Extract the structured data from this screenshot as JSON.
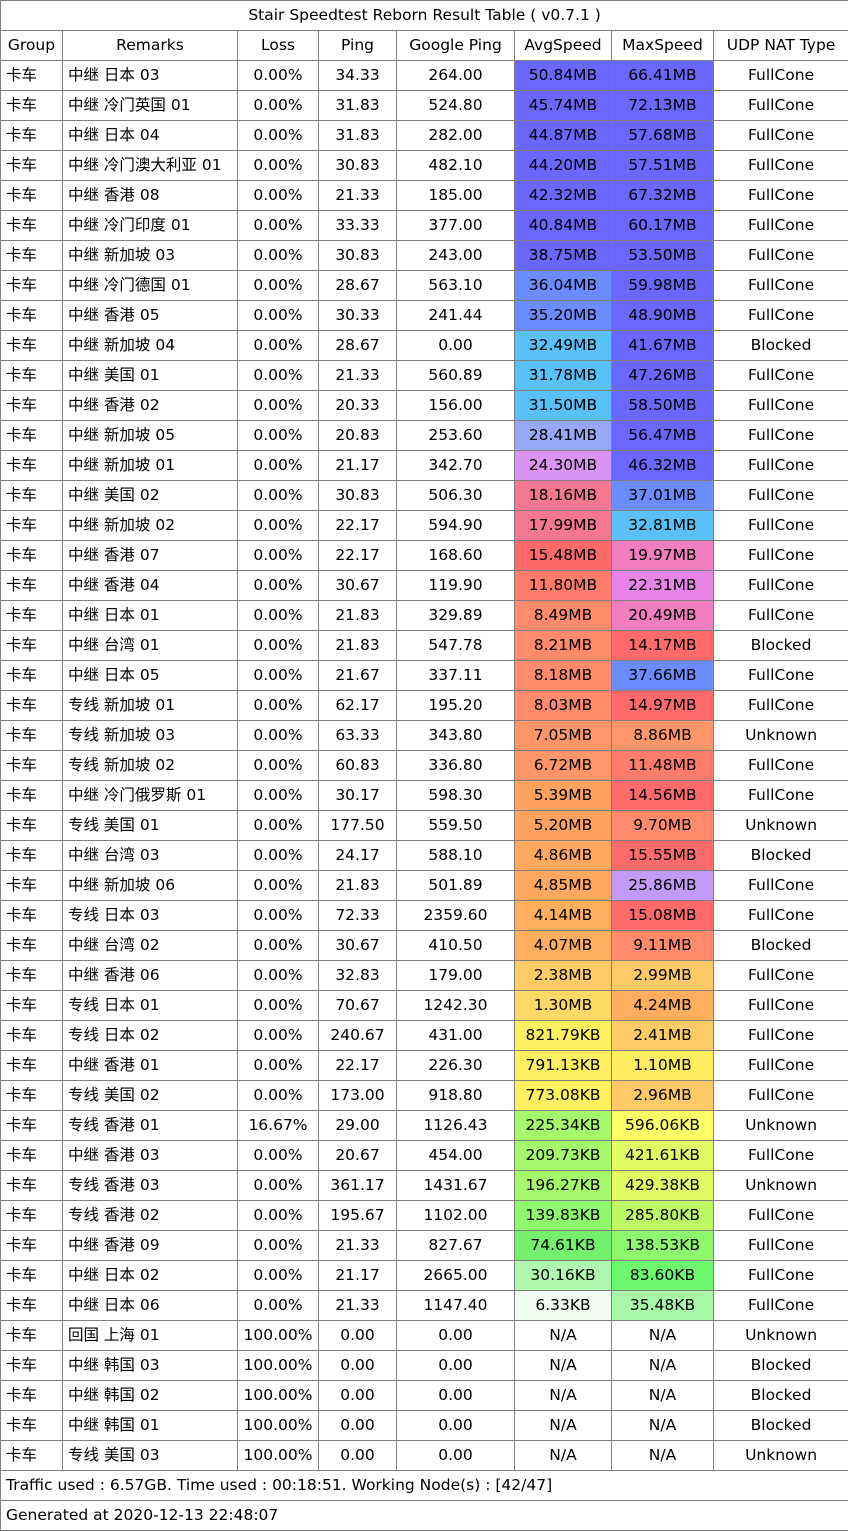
{
  "title": "Stair Speedtest Reborn Result Table ( v0.7.1 )",
  "headers": [
    "Group",
    "Remarks",
    "Loss",
    "Ping",
    "Google Ping",
    "AvgSpeed",
    "MaxSpeed",
    "UDP NAT Type"
  ],
  "rows": [
    {
      "group": "卡车",
      "remarks": "中继 日本 03",
      "loss": "0.00%",
      "ping": "34.33",
      "gping": "264.00",
      "avg": "50.84MB",
      "avg_color": "#6a67ff",
      "max": "66.41MB",
      "max_color": "#6a67ff",
      "nat": "FullCone"
    },
    {
      "group": "卡车",
      "remarks": "中继 冷门英国 01",
      "loss": "0.00%",
      "ping": "31.83",
      "gping": "524.80",
      "avg": "45.74MB",
      "avg_color": "#6a67ff",
      "max": "72.13MB",
      "max_color": "#6a67ff",
      "nat": "FullCone"
    },
    {
      "group": "卡车",
      "remarks": "中继 日本 04",
      "loss": "0.00%",
      "ping": "31.83",
      "gping": "282.00",
      "avg": "44.87MB",
      "avg_color": "#6a67ff",
      "max": "57.68MB",
      "max_color": "#6a67ff",
      "nat": "FullCone"
    },
    {
      "group": "卡车",
      "remarks": "中继 冷门澳大利亚 01",
      "loss": "0.00%",
      "ping": "30.83",
      "gping": "482.10",
      "avg": "44.20MB",
      "avg_color": "#6a67ff",
      "max": "57.51MB",
      "max_color": "#6a67ff",
      "nat": "FullCone"
    },
    {
      "group": "卡车",
      "remarks": "中继 香港 08",
      "loss": "0.00%",
      "ping": "21.33",
      "gping": "185.00",
      "avg": "42.32MB",
      "avg_color": "#6a67ff",
      "max": "67.32MB",
      "max_color": "#6a67ff",
      "nat": "FullCone"
    },
    {
      "group": "卡车",
      "remarks": "中继 冷门印度 01",
      "loss": "0.00%",
      "ping": "33.33",
      "gping": "377.00",
      "avg": "40.84MB",
      "avg_color": "#6a67ff",
      "max": "60.17MB",
      "max_color": "#6a67ff",
      "nat": "FullCone"
    },
    {
      "group": "卡车",
      "remarks": "中继 新加坡 03",
      "loss": "0.00%",
      "ping": "30.83",
      "gping": "243.00",
      "avg": "38.75MB",
      "avg_color": "#6a67ff",
      "max": "53.50MB",
      "max_color": "#6a67ff",
      "nat": "FullCone"
    },
    {
      "group": "卡车",
      "remarks": "中继 冷门德国 01",
      "loss": "0.00%",
      "ping": "28.67",
      "gping": "563.10",
      "avg": "36.04MB",
      "avg_color": "#6a8cff",
      "max": "59.98MB",
      "max_color": "#6a67ff",
      "nat": "FullCone"
    },
    {
      "group": "卡车",
      "remarks": "中继 香港 05",
      "loss": "0.00%",
      "ping": "30.33",
      "gping": "241.44",
      "avg": "35.20MB",
      "avg_color": "#6a8cff",
      "max": "48.90MB",
      "max_color": "#6a67ff",
      "nat": "FullCone"
    },
    {
      "group": "卡车",
      "remarks": "中继 新加坡 04",
      "loss": "0.00%",
      "ping": "28.67",
      "gping": "0.00",
      "avg": "32.49MB",
      "avg_color": "#5ac0f8",
      "max": "41.67MB",
      "max_color": "#6a67ff",
      "nat": "Blocked"
    },
    {
      "group": "卡车",
      "remarks": "中继 美国 01",
      "loss": "0.00%",
      "ping": "21.33",
      "gping": "560.89",
      "avg": "31.78MB",
      "avg_color": "#5ac0f8",
      "max": "47.26MB",
      "max_color": "#6a67ff",
      "nat": "FullCone"
    },
    {
      "group": "卡车",
      "remarks": "中继 香港 02",
      "loss": "0.00%",
      "ping": "20.33",
      "gping": "156.00",
      "avg": "31.50MB",
      "avg_color": "#5ac0f8",
      "max": "58.50MB",
      "max_color": "#6a67ff",
      "nat": "FullCone"
    },
    {
      "group": "卡车",
      "remarks": "中继 新加坡 05",
      "loss": "0.00%",
      "ping": "20.83",
      "gping": "253.60",
      "avg": "28.41MB",
      "avg_color": "#97a9f6",
      "max": "56.47MB",
      "max_color": "#6a67ff",
      "nat": "FullCone"
    },
    {
      "group": "卡车",
      "remarks": "中继 新加坡 01",
      "loss": "0.00%",
      "ping": "21.17",
      "gping": "342.70",
      "avg": "24.30MB",
      "avg_color": "#dc94f2",
      "max": "46.32MB",
      "max_color": "#6a67ff",
      "nat": "FullCone"
    },
    {
      "group": "卡车",
      "remarks": "中继 美国 02",
      "loss": "0.00%",
      "ping": "30.83",
      "gping": "506.30",
      "avg": "18.16MB",
      "avg_color": "#f47691",
      "max": "37.01MB",
      "max_color": "#6a8cff",
      "nat": "FullCone"
    },
    {
      "group": "卡车",
      "remarks": "中继 新加坡 02",
      "loss": "0.00%",
      "ping": "22.17",
      "gping": "594.90",
      "avg": "17.99MB",
      "avg_color": "#f47691",
      "max": "32.81MB",
      "max_color": "#5ac0f8",
      "nat": "FullCone"
    },
    {
      "group": "卡车",
      "remarks": "中继 香港 07",
      "loss": "0.00%",
      "ping": "22.17",
      "gping": "168.60",
      "avg": "15.48MB",
      "avg_color": "#fe6a6a",
      "max": "19.97MB",
      "max_color": "#f07ec0",
      "nat": "FullCone"
    },
    {
      "group": "卡车",
      "remarks": "中继 香港 04",
      "loss": "0.00%",
      "ping": "30.67",
      "gping": "119.90",
      "avg": "11.80MB",
      "avg_color": "#ff7b6b",
      "max": "22.31MB",
      "max_color": "#e884e8",
      "nat": "FullCone"
    },
    {
      "group": "卡车",
      "remarks": "中继 日本 01",
      "loss": "0.00%",
      "ping": "21.83",
      "gping": "329.89",
      "avg": "8.49MB",
      "avg_color": "#ff8b6c",
      "max": "20.49MB",
      "max_color": "#f07ec0",
      "nat": "FullCone"
    },
    {
      "group": "卡车",
      "remarks": "中继 台湾 01",
      "loss": "0.00%",
      "ping": "21.83",
      "gping": "547.78",
      "avg": "8.21MB",
      "avg_color": "#ff8b6c",
      "max": "14.17MB",
      "max_color": "#ff6a6a",
      "nat": "Blocked"
    },
    {
      "group": "卡车",
      "remarks": "中继 日本 05",
      "loss": "0.00%",
      "ping": "21.67",
      "gping": "337.11",
      "avg": "8.18MB",
      "avg_color": "#ff8b6c",
      "max": "37.66MB",
      "max_color": "#6a8cff",
      "nat": "FullCone"
    },
    {
      "group": "卡车",
      "remarks": "专线 新加坡 01",
      "loss": "0.00%",
      "ping": "62.17",
      "gping": "195.20",
      "avg": "8.03MB",
      "avg_color": "#ff8b6c",
      "max": "14.97MB",
      "max_color": "#ff6a6a",
      "nat": "FullCone"
    },
    {
      "group": "卡车",
      "remarks": "专线 新加坡 03",
      "loss": "0.00%",
      "ping": "63.33",
      "gping": "343.80",
      "avg": "7.05MB",
      "avg_color": "#ff9668",
      "max": "8.86MB",
      "max_color": "#ff9668",
      "nat": "Unknown"
    },
    {
      "group": "卡车",
      "remarks": "专线 新加坡 02",
      "loss": "0.00%",
      "ping": "60.83",
      "gping": "336.80",
      "avg": "6.72MB",
      "avg_color": "#ff9668",
      "max": "11.48MB",
      "max_color": "#ff7b6b",
      "nat": "FullCone"
    },
    {
      "group": "卡车",
      "remarks": "中继 冷门俄罗斯 01",
      "loss": "0.00%",
      "ping": "30.17",
      "gping": "598.30",
      "avg": "5.39MB",
      "avg_color": "#ffa260",
      "max": "14.56MB",
      "max_color": "#ff6a6a",
      "nat": "FullCone"
    },
    {
      "group": "卡车",
      "remarks": "专线 美国 01",
      "loss": "0.00%",
      "ping": "177.50",
      "gping": "559.50",
      "avg": "5.20MB",
      "avg_color": "#ffa260",
      "max": "9.70MB",
      "max_color": "#ff8b6c",
      "nat": "Unknown"
    },
    {
      "group": "卡车",
      "remarks": "中继 台湾 03",
      "loss": "0.00%",
      "ping": "24.17",
      "gping": "588.10",
      "avg": "4.86MB",
      "avg_color": "#ffa85e",
      "max": "15.55MB",
      "max_color": "#ff6a6a",
      "nat": "Blocked"
    },
    {
      "group": "卡车",
      "remarks": "中继 新加坡 06",
      "loss": "0.00%",
      "ping": "21.83",
      "gping": "501.89",
      "avg": "4.85MB",
      "avg_color": "#ffa85e",
      "max": "25.86MB",
      "max_color": "#c49af8",
      "nat": "FullCone"
    },
    {
      "group": "卡车",
      "remarks": "专线 日本 03",
      "loss": "0.00%",
      "ping": "72.33",
      "gping": "2359.60",
      "avg": "4.14MB",
      "avg_color": "#ffae5e",
      "max": "15.08MB",
      "max_color": "#ff6a6a",
      "nat": "FullCone"
    },
    {
      "group": "卡车",
      "remarks": "中继 台湾 02",
      "loss": "0.00%",
      "ping": "30.67",
      "gping": "410.50",
      "avg": "4.07MB",
      "avg_color": "#ffae5e",
      "max": "9.11MB",
      "max_color": "#ff8b6c",
      "nat": "Blocked"
    },
    {
      "group": "卡车",
      "remarks": "中继 香港 06",
      "loss": "0.00%",
      "ping": "32.83",
      "gping": "179.00",
      "avg": "2.38MB",
      "avg_color": "#ffcb66",
      "max": "2.99MB",
      "max_color": "#ffc966",
      "nat": "FullCone"
    },
    {
      "group": "卡车",
      "remarks": "专线 日本 01",
      "loss": "0.00%",
      "ping": "70.67",
      "gping": "1242.30",
      "avg": "1.30MB",
      "avg_color": "#ffd966",
      "max": "4.24MB",
      "max_color": "#ffae5e",
      "nat": "FullCone"
    },
    {
      "group": "卡车",
      "remarks": "专线 日本 02",
      "loss": "0.00%",
      "ping": "240.67",
      "gping": "431.00",
      "avg": "821.79KB",
      "avg_color": "#fff060",
      "max": "2.41MB",
      "max_color": "#ffcb66",
      "nat": "FullCone"
    },
    {
      "group": "卡车",
      "remarks": "中继 香港 01",
      "loss": "0.00%",
      "ping": "22.17",
      "gping": "226.30",
      "avg": "791.13KB",
      "avg_color": "#fff060",
      "max": "1.10MB",
      "max_color": "#ffed60",
      "nat": "FullCone"
    },
    {
      "group": "卡车",
      "remarks": "专线 美国 02",
      "loss": "0.00%",
      "ping": "173.00",
      "gping": "918.80",
      "avg": "773.08KB",
      "avg_color": "#fff060",
      "max": "2.96MB",
      "max_color": "#ffc966",
      "nat": "FullCone"
    },
    {
      "group": "卡车",
      "remarks": "专线 香港 01",
      "loss": "16.67%",
      "ping": "29.00",
      "gping": "1126.43",
      "avg": "225.34KB",
      "avg_color": "#a4f86a",
      "max": "596.06KB",
      "max_color": "#ffff66",
      "nat": "Unknown"
    },
    {
      "group": "卡车",
      "remarks": "中继 香港 03",
      "loss": "0.00%",
      "ping": "20.67",
      "gping": "454.00",
      "avg": "209.73KB",
      "avg_color": "#a4f86a",
      "max": "421.61KB",
      "max_color": "#e0fc62",
      "nat": "FullCone"
    },
    {
      "group": "卡车",
      "remarks": "专线 香港 03",
      "loss": "0.00%",
      "ping": "361.17",
      "gping": "1431.67",
      "avg": "196.27KB",
      "avg_color": "#a4f86a",
      "max": "429.38KB",
      "max_color": "#e0fc62",
      "nat": "Unknown"
    },
    {
      "group": "卡车",
      "remarks": "专线 香港 02",
      "loss": "0.00%",
      "ping": "195.67",
      "gping": "1102.00",
      "avg": "139.83KB",
      "avg_color": "#8ef86c",
      "max": "285.80KB",
      "max_color": "#bef864",
      "nat": "FullCone"
    },
    {
      "group": "卡车",
      "remarks": "中继 香港 09",
      "loss": "0.00%",
      "ping": "21.33",
      "gping": "827.67",
      "avg": "74.61KB",
      "avg_color": "#74f06c",
      "max": "138.53KB",
      "max_color": "#8ef86c",
      "nat": "FullCone"
    },
    {
      "group": "卡车",
      "remarks": "中继 日本 02",
      "loss": "0.00%",
      "ping": "21.17",
      "gping": "2665.00",
      "avg": "30.16KB",
      "avg_color": "#b0f8b0",
      "max": "83.60KB",
      "max_color": "#6cf86c",
      "nat": "FullCone"
    },
    {
      "group": "卡车",
      "remarks": "中继 日本 06",
      "loss": "0.00%",
      "ping": "21.33",
      "gping": "1147.40",
      "avg": "6.33KB",
      "avg_color": "#f0fcf0",
      "max": "35.48KB",
      "max_color": "#a8f8a8",
      "nat": "FullCone"
    },
    {
      "group": "卡车",
      "remarks": "回国 上海 01",
      "loss": "100.00%",
      "ping": "0.00",
      "gping": "0.00",
      "avg": "N/A",
      "avg_color": "#ffffff",
      "max": "N/A",
      "max_color": "#ffffff",
      "nat": "Unknown"
    },
    {
      "group": "卡车",
      "remarks": "中继 韩国 03",
      "loss": "100.00%",
      "ping": "0.00",
      "gping": "0.00",
      "avg": "N/A",
      "avg_color": "#ffffff",
      "max": "N/A",
      "max_color": "#ffffff",
      "nat": "Blocked"
    },
    {
      "group": "卡车",
      "remarks": "中继 韩国 02",
      "loss": "100.00%",
      "ping": "0.00",
      "gping": "0.00",
      "avg": "N/A",
      "avg_color": "#ffffff",
      "max": "N/A",
      "max_color": "#ffffff",
      "nat": "Blocked"
    },
    {
      "group": "卡车",
      "remarks": "中继 韩国 01",
      "loss": "100.00%",
      "ping": "0.00",
      "gping": "0.00",
      "avg": "N/A",
      "avg_color": "#ffffff",
      "max": "N/A",
      "max_color": "#ffffff",
      "nat": "Blocked"
    },
    {
      "group": "卡车",
      "remarks": "专线 美国 03",
      "loss": "100.00%",
      "ping": "0.00",
      "gping": "0.00",
      "avg": "N/A",
      "avg_color": "#ffffff",
      "max": "N/A",
      "max_color": "#ffffff",
      "nat": "Unknown"
    }
  ],
  "footer": {
    "traffic": "Traffic used : 6.57GB. Time used : 00:18:51. Working Node(s) : [42/47]",
    "generated": "Generated at 2020-12-13 22:48:07"
  }
}
